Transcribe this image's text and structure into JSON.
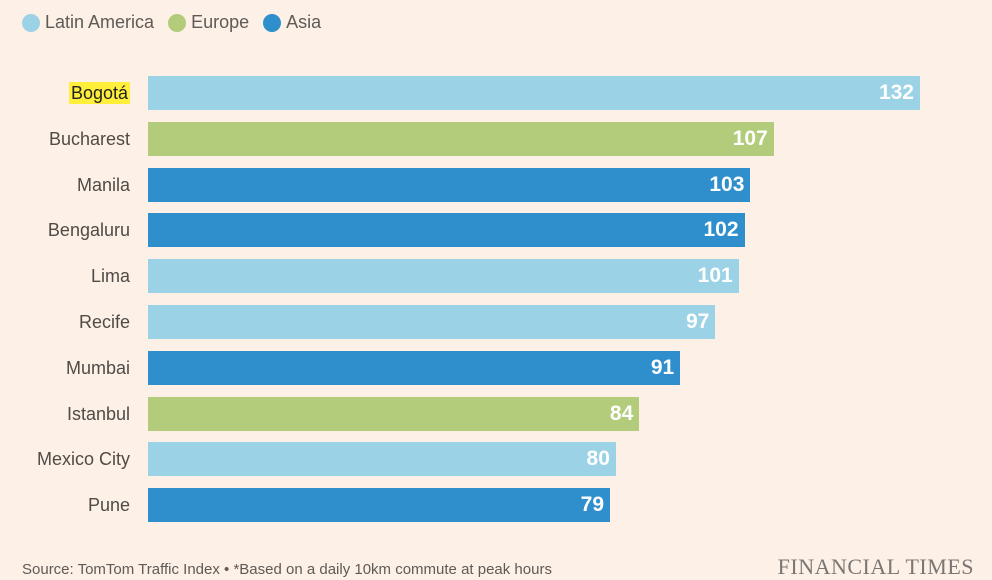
{
  "chart_data": {
    "type": "bar",
    "orientation": "horizontal",
    "title": "",
    "xlabel": "",
    "ylabel": "",
    "xlim": [
      0,
      140
    ],
    "grid": false,
    "legend_placement": "top-left",
    "legend": [
      {
        "name": "Latin America",
        "color": "#9bd2e6"
      },
      {
        "name": "Europe",
        "color": "#b2cc7c"
      },
      {
        "name": "Asia",
        "color": "#2e8fcc"
      }
    ],
    "categories": [
      "Bogotá",
      "Bucharest",
      "Manila",
      "Bengaluru",
      "Lima",
      "Recife",
      "Mumbai",
      "Istanbul",
      "Mexico City",
      "Pune"
    ],
    "values": [
      132,
      107,
      103,
      102,
      101,
      97,
      91,
      84,
      80,
      79
    ],
    "regions": [
      "Latin America",
      "Europe",
      "Asia",
      "Asia",
      "Latin America",
      "Latin America",
      "Asia",
      "Europe",
      "Latin America",
      "Asia"
    ],
    "highlighted": "Bogotá"
  },
  "footer": {
    "source": "Source: TomTom Traffic Index • *Based on a daily 10km commute at peak hours",
    "brand": "FINANCIAL TIMES"
  }
}
